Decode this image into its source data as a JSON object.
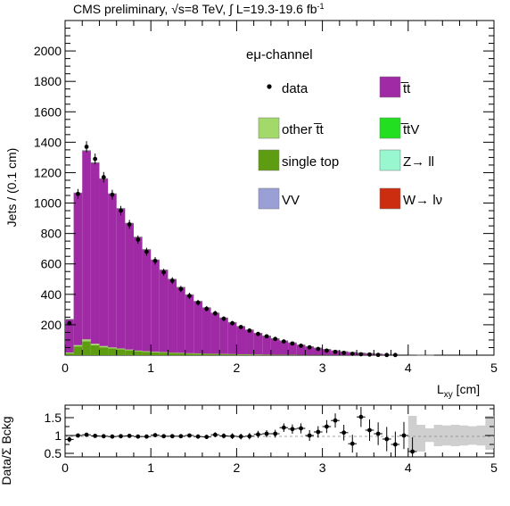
{
  "header": {
    "title": "CMS preliminary, √s=8 TeV, ∫ L=19.3-19.6 fb",
    "title_sup": "-1"
  },
  "chart_data": [
    {
      "type": "bar",
      "subtype": "stacked-histogram",
      "channel_label": "eμ-channel",
      "ylabel": "Jets / (0.1 cm)",
      "xlabel": "L",
      "xlabel_sub": "xy",
      "xlabel_unit": " [cm]",
      "xlim": [
        0,
        5
      ],
      "ylim": [
        0,
        2200
      ],
      "x_ticks": [
        "0",
        "1",
        "2",
        "3",
        "4",
        "5"
      ],
      "y_ticks": [
        "200",
        "400",
        "600",
        "800",
        "1000",
        "1200",
        "1400",
        "1600",
        "1800",
        "2000"
      ],
      "bin_width": 0.1,
      "bin_edges_start": 0,
      "legend": [
        {
          "key": "data",
          "label": "data",
          "style": "marker",
          "color": "#000000"
        },
        {
          "key": "ttbar",
          "label": "t̅t",
          "style": "box",
          "color": "#a02aa6"
        },
        {
          "key": "other_tt",
          "label": "other t̅t",
          "style": "box",
          "color": "#a3d96b"
        },
        {
          "key": "ttv",
          "label": "t̅tV",
          "style": "box",
          "color": "#22e021"
        },
        {
          "key": "single_top",
          "label": "single top",
          "style": "box",
          "color": "#5e9d12"
        },
        {
          "key": "zll",
          "label": "Z→ ll",
          "style": "box",
          "color": "#99f7cf"
        },
        {
          "key": "vv",
          "label": "VV",
          "style": "box",
          "color": "#9a9fd6"
        },
        {
          "key": "wlv",
          "label": "W→ lν",
          "style": "box",
          "color": "#cc2d10"
        }
      ],
      "series": [
        {
          "name": "single top",
          "color": "#5e9d12",
          "values": [
            12,
            58,
            92,
            65,
            52,
            44,
            38,
            32,
            26,
            22,
            19,
            17,
            15,
            13,
            11,
            10,
            9,
            8,
            7,
            6,
            5,
            5,
            4,
            4,
            3,
            3,
            3,
            2,
            2,
            2,
            2,
            1,
            1,
            1,
            1,
            1,
            1,
            0,
            0,
            0,
            0,
            0,
            0,
            0,
            0,
            0,
            0,
            0,
            0,
            0
          ]
        },
        {
          "name": "other t̅t",
          "color": "#a3d96b",
          "values": [
            5,
            8,
            12,
            10,
            8,
            7,
            6,
            5,
            4,
            4,
            3,
            3,
            2,
            2,
            2,
            2,
            1,
            1,
            1,
            1,
            1,
            1,
            1,
            0,
            0,
            0,
            0,
            0,
            0,
            0,
            0,
            0,
            0,
            0,
            0,
            0,
            0,
            0,
            0,
            0,
            0,
            0,
            0,
            0,
            0,
            0,
            0,
            0,
            0,
            0
          ]
        },
        {
          "name": "t̅t",
          "color": "#a02aa6",
          "values": [
            218,
            1000,
            1240,
            1190,
            1100,
            1010,
            920,
            830,
            746,
            668,
            604,
            540,
            482,
            431,
            384,
            342,
            302,
            268,
            237,
            208,
            183,
            160,
            139,
            122,
            106,
            91,
            78,
            65,
            54,
            45,
            36,
            28,
            22,
            17,
            13,
            10,
            7,
            5,
            4,
            3,
            2,
            1,
            1,
            0,
            0,
            0,
            0,
            0,
            0,
            0
          ]
        }
      ],
      "data_points": {
        "name": "data",
        "values": [
          210,
          1060,
          1370,
          1290,
          1170,
          1055,
          950,
          860,
          760,
          680,
          620,
          545,
          490,
          435,
          390,
          345,
          305,
          275,
          240,
          210,
          185,
          162,
          140,
          124,
          107,
          90,
          77,
          62,
          52,
          41,
          30,
          22,
          15,
          9,
          6,
          4,
          2,
          1,
          1,
          0,
          0,
          0,
          0,
          0,
          0,
          0,
          0,
          0,
          0,
          0
        ]
      }
    },
    {
      "type": "scatter",
      "subtype": "ratio",
      "ylabel": "Data/Σ Bckg",
      "xlim": [
        0,
        5
      ],
      "ylim": [
        0.4,
        1.85
      ],
      "y_ticks": [
        "0.5",
        "1",
        "1.5"
      ],
      "x_ticks": [
        "0",
        "1",
        "2",
        "3",
        "4",
        "5"
      ],
      "x": [
        0.05,
        0.15,
        0.25,
        0.35,
        0.45,
        0.55,
        0.65,
        0.75,
        0.85,
        0.95,
        1.05,
        1.15,
        1.25,
        1.35,
        1.45,
        1.55,
        1.65,
        1.75,
        1.85,
        1.95,
        2.05,
        2.15,
        2.25,
        2.35,
        2.45,
        2.55,
        2.65,
        2.75,
        2.85,
        2.95,
        3.05,
        3.15,
        3.25,
        3.35,
        3.45,
        3.55,
        3.65,
        3.75,
        3.85,
        3.95,
        4.05
      ],
      "values": [
        0.89,
        1.0,
        1.02,
        0.99,
        0.98,
        0.97,
        0.98,
        0.99,
        0.97,
        0.97,
        1.01,
        0.98,
        0.98,
        0.98,
        1.0,
        0.97,
        0.96,
        1.02,
        0.99,
        0.98,
        0.97,
        0.98,
        1.03,
        1.05,
        1.05,
        1.22,
        1.18,
        1.2,
        1.0,
        1.1,
        1.25,
        1.42,
        1.08,
        0.77,
        1.52,
        1.15,
        1.05,
        0.9,
        0.75,
        1.0,
        0.55
      ],
      "errors": [
        0.08,
        0.04,
        0.03,
        0.03,
        0.03,
        0.03,
        0.03,
        0.03,
        0.04,
        0.04,
        0.04,
        0.04,
        0.05,
        0.05,
        0.05,
        0.06,
        0.06,
        0.07,
        0.07,
        0.08,
        0.08,
        0.09,
        0.1,
        0.1,
        0.11,
        0.12,
        0.13,
        0.14,
        0.15,
        0.16,
        0.18,
        0.2,
        0.22,
        0.25,
        0.28,
        0.3,
        0.32,
        0.34,
        0.36,
        0.38,
        0.4
      ],
      "uncertainty_band": {
        "color": "#cfcfcf",
        "x": [
          4.05,
          4.15,
          4.25,
          4.35,
          4.45,
          4.55,
          4.65,
          4.75,
          4.85,
          4.95
        ],
        "low": [
          0.55,
          0.55,
          0.82,
          0.7,
          0.72,
          0.7,
          0.72,
          0.74,
          0.72,
          0.6
        ],
        "high": [
          1.55,
          1.3,
          1.2,
          1.3,
          1.28,
          1.3,
          1.28,
          1.26,
          1.28,
          1.55
        ]
      }
    }
  ]
}
